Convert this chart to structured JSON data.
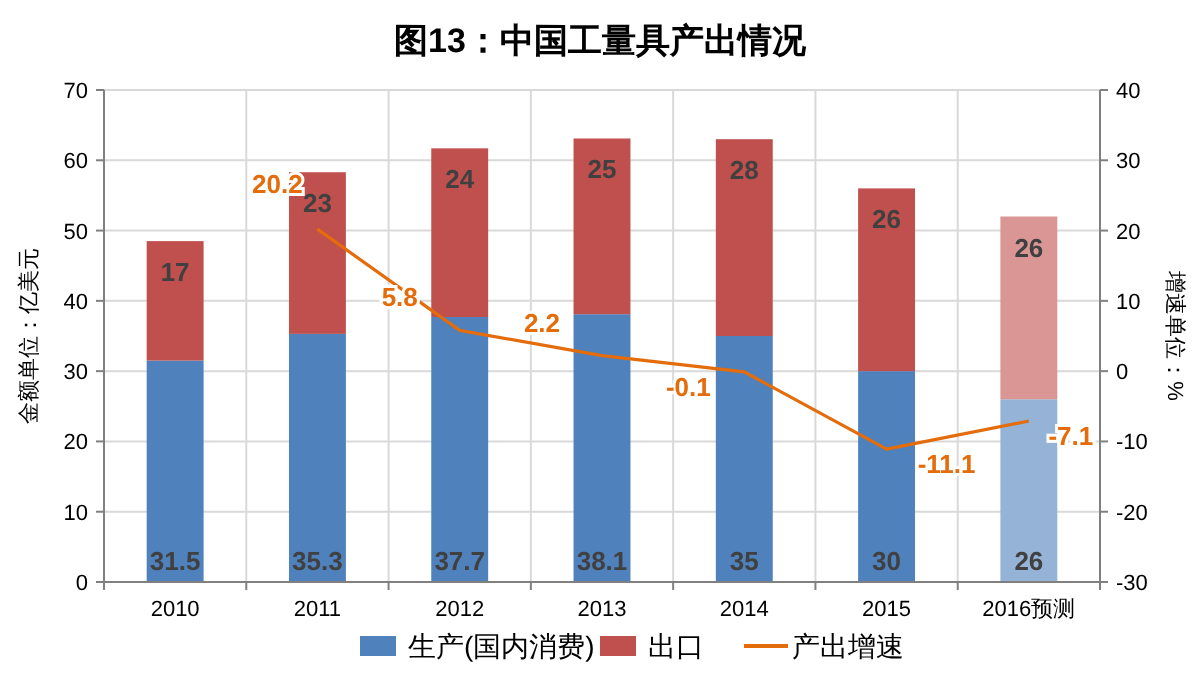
{
  "chart_data": {
    "type": "bar",
    "title": "图13：中国工量具产出情况",
    "ylabel": "金额单位：亿美元",
    "y2label": "增速单位：%",
    "categories": [
      "2010",
      "2011",
      "2012",
      "2013",
      "2014",
      "2015",
      "2016预测"
    ],
    "stacked": true,
    "series": [
      {
        "name": "生产(国内消费)",
        "color": "#4f81bd",
        "colors": [
          "#4f81bd",
          "#4f81bd",
          "#4f81bd",
          "#4f81bd",
          "#4f81bd",
          "#4f81bd",
          "#95b3d7"
        ],
        "values": [
          31.5,
          35.3,
          37.7,
          38.1,
          35,
          30,
          26
        ]
      },
      {
        "name": "出口",
        "color": "#c0504d",
        "colors": [
          "#c0504d",
          "#c0504d",
          "#c0504d",
          "#c0504d",
          "#c0504d",
          "#c0504d",
          "#d99694"
        ],
        "values": [
          17,
          23,
          24,
          25,
          28,
          26,
          26
        ]
      },
      {
        "name": "产出增速",
        "type": "line",
        "axis": "y2",
        "color": "#e46c0a",
        "values": [
          null,
          20.2,
          5.8,
          2.2,
          -0.1,
          -11.1,
          -7.1
        ]
      }
    ],
    "ylim": [
      0,
      70
    ],
    "yticks": [
      0,
      10,
      20,
      30,
      40,
      50,
      60,
      70
    ],
    "y2lim": [
      -30,
      40
    ],
    "y2ticks": [
      -30,
      -20,
      -10,
      0,
      10,
      20,
      30,
      40
    ],
    "data_labels": true,
    "grid": true,
    "legend": "bottom"
  }
}
